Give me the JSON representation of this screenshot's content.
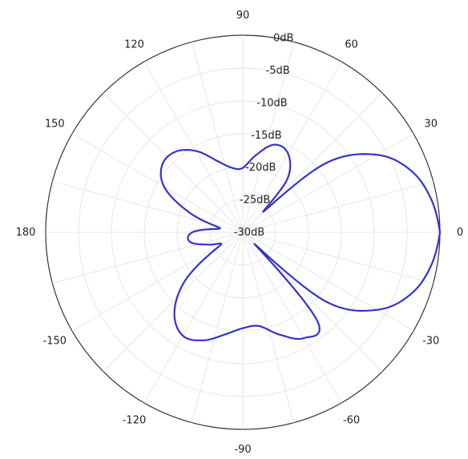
{
  "chart_data": {
    "type": "polar-line",
    "title": "",
    "angular_axis": {
      "unit": "degrees",
      "range": [
        -180,
        180
      ],
      "ticks": [
        0,
        30,
        60,
        90,
        120,
        150,
        180,
        -150,
        -120,
        -90,
        -60,
        -30
      ],
      "tick_labels": [
        "0",
        "30",
        "60",
        "90",
        "120",
        "150",
        "180",
        "-150",
        "-120",
        "-90",
        "-60",
        "-30"
      ]
    },
    "radial_axis": {
      "unit": "dB",
      "range": [
        -30,
        0
      ],
      "ticks": [
        0,
        -5,
        -10,
        -15,
        -20,
        -25,
        -30
      ],
      "tick_labels": [
        "0dB",
        "-5dB",
        "-10dB",
        "-15dB",
        "-20dB",
        "-25dB",
        "-30dB"
      ]
    },
    "grid": true,
    "series": [
      {
        "color": "#3333cc",
        "theta": [
          0,
          10,
          20,
          30,
          40,
          45,
          50,
          60,
          70,
          80,
          90,
          100,
          110,
          120,
          130,
          140,
          150,
          160,
          170,
          180,
          190,
          200,
          210,
          220,
          230,
          240,
          250,
          260,
          270,
          280,
          290,
          300,
          310,
          315,
          320,
          330,
          340,
          350,
          360
        ],
        "r": [
          0,
          -0.9,
          -2.7,
          -6.4,
          -13.8,
          -25.5,
          -19.5,
          -16.2,
          -15.8,
          -18.0,
          -20.2,
          -20.0,
          -18.4,
          -15.7,
          -14.0,
          -14.0,
          -16.2,
          -21.5,
          -26.5,
          -22.3,
          -21.8,
          -24.5,
          -26.0,
          -18.5,
          -13.8,
          -11.8,
          -12.5,
          -14.2,
          -15.4,
          -15.5,
          -13.4,
          -11.4,
          -12.3,
          -27.5,
          -13.8,
          -6.4,
          -2.7,
          -0.9,
          0
        ]
      }
    ]
  }
}
